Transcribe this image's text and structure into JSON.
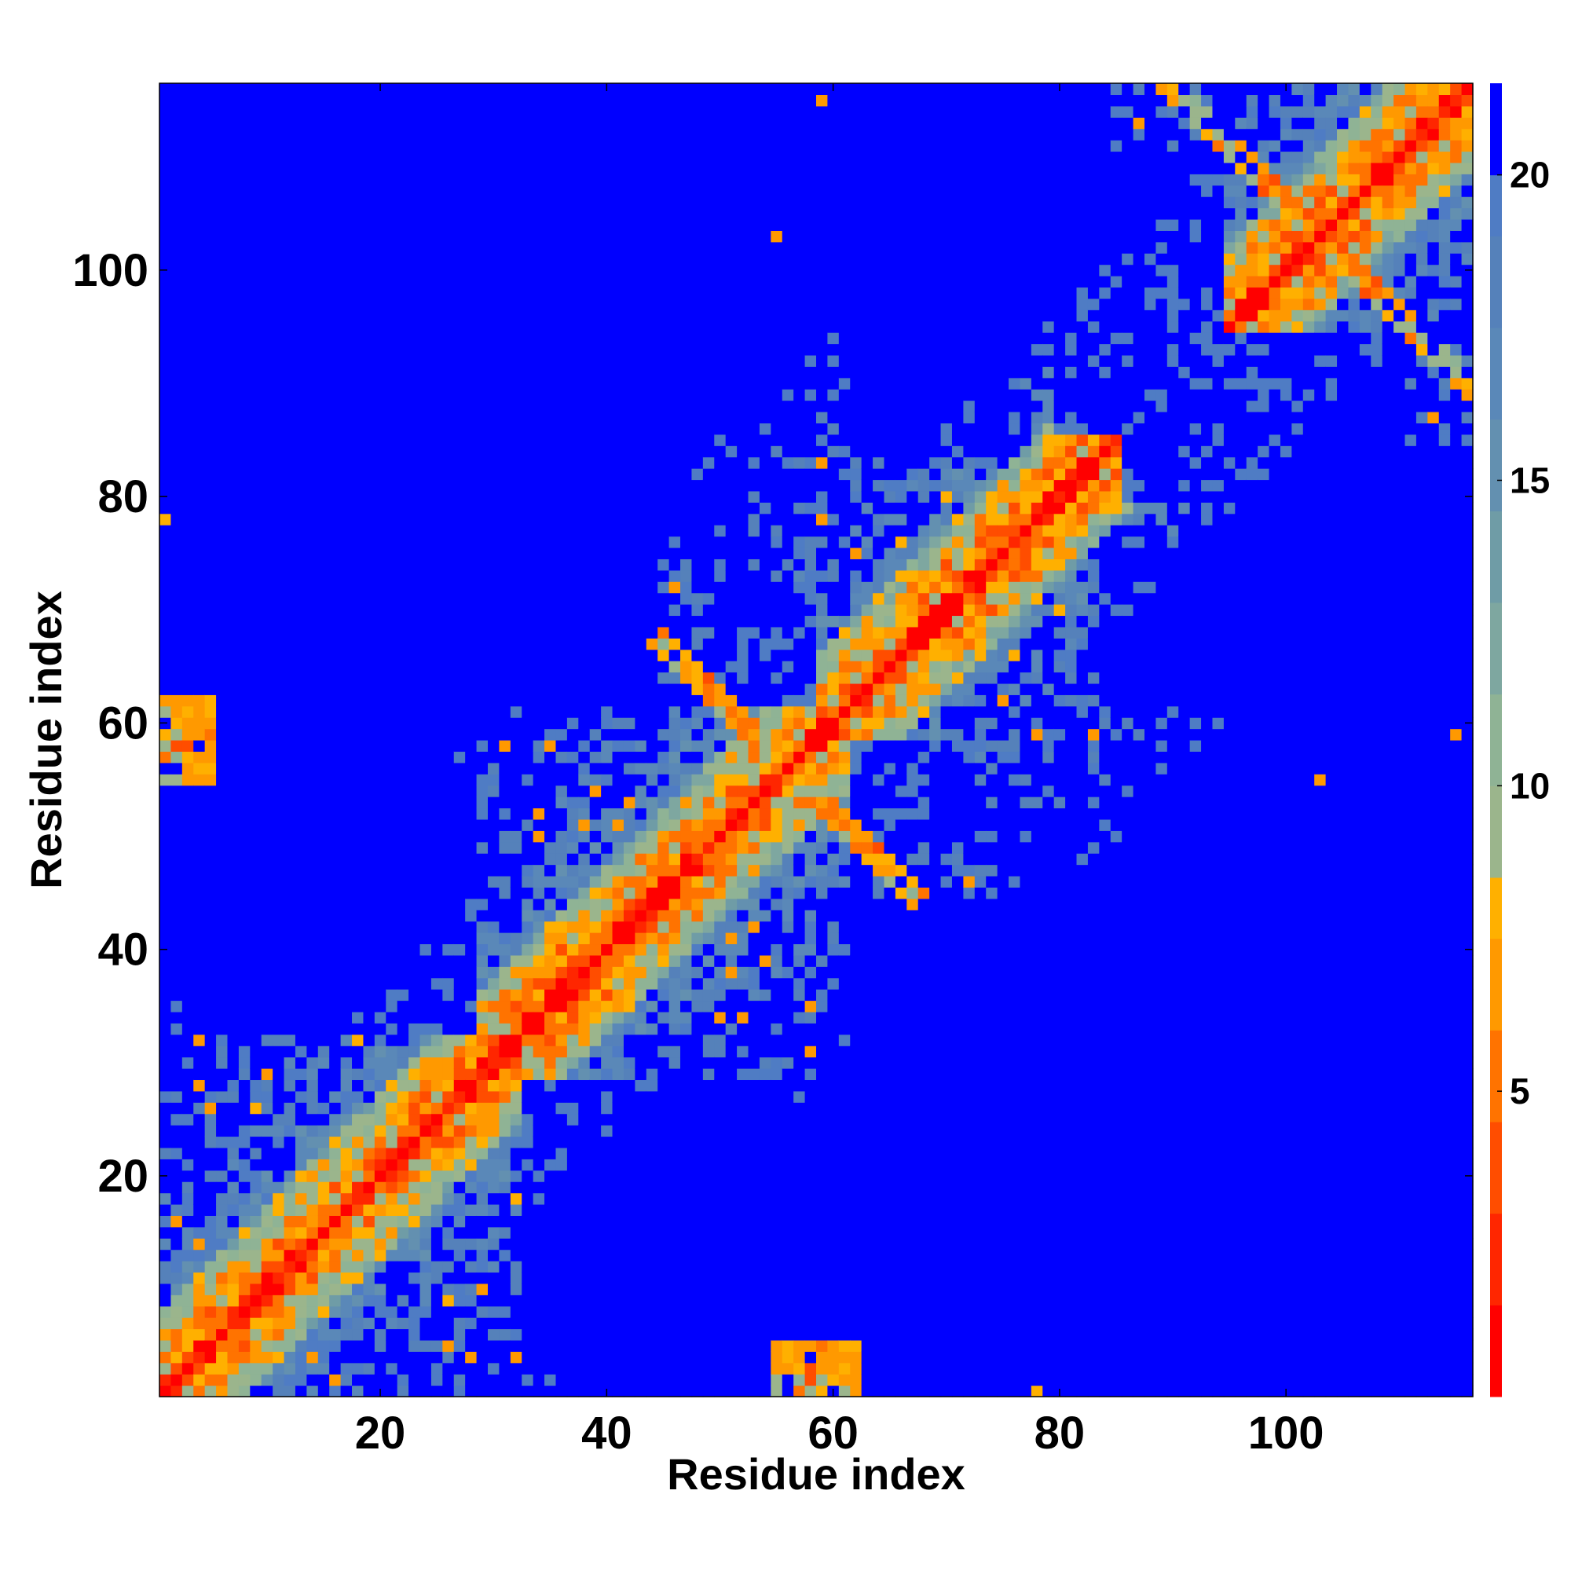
{
  "chart_data": {
    "type": "heatmap",
    "title": "",
    "xlabel": "Residue index",
    "ylabel": "Residue index",
    "n_residues": 116,
    "xlim": [
      0.5,
      116.5
    ],
    "ylim": [
      0.5,
      116.5
    ],
    "x_ticks": [
      20,
      40,
      60,
      80,
      100
    ],
    "y_ticks": [
      20,
      40,
      60,
      80,
      100
    ],
    "colorbar": {
      "ticks": [
        5,
        10,
        15,
        20
      ],
      "range": [
        0,
        21.5
      ],
      "bins": [
        {
          "max": 1.5,
          "color": "#ff0000"
        },
        {
          "max": 3.0,
          "color": "#ff2600"
        },
        {
          "max": 4.5,
          "color": "#ff4d00"
        },
        {
          "max": 6.0,
          "color": "#ff7300"
        },
        {
          "max": 7.5,
          "color": "#ff9900"
        },
        {
          "max": 8.5,
          "color": "#ffb000"
        },
        {
          "max": 10.0,
          "color": "#9bb58c"
        },
        {
          "max": 11.5,
          "color": "#8fb395"
        },
        {
          "max": 13.0,
          "color": "#7ea7a0"
        },
        {
          "max": 14.5,
          "color": "#6f9ca6"
        },
        {
          "max": 16.0,
          "color": "#6390b0"
        },
        {
          "max": 17.5,
          "color": "#5a88b8"
        },
        {
          "max": 19.0,
          "color": "#5581ba"
        },
        {
          "max": 20.0,
          "color": "#4f7cc4"
        },
        {
          "max": 99,
          "color": "#0000ff"
        }
      ]
    },
    "distance_cutoff": 20,
    "contact_map_description_values": {
      "diagonal_distance": 3.8,
      "blocks": [
        {
          "x": [
            1,
            20
          ],
          "y": [
            60,
            116
          ],
          "level": "far"
        },
        {
          "x": [
            20,
            45
          ],
          "y": [
            60,
            116
          ],
          "level": "far"
        },
        {
          "x": [
            2,
            30
          ],
          "y": [
            34,
            55
          ],
          "level": "far"
        },
        {
          "x": [
            34,
            58
          ],
          "y": [
            2,
            30
          ],
          "level": "far"
        },
        {
          "x": [
            58,
            116
          ],
          "y": [
            1,
            34
          ],
          "level": "far"
        },
        {
          "x": [
            85,
            116
          ],
          "y": [
            30,
            55
          ],
          "level": "far"
        }
      ]
    }
  }
}
